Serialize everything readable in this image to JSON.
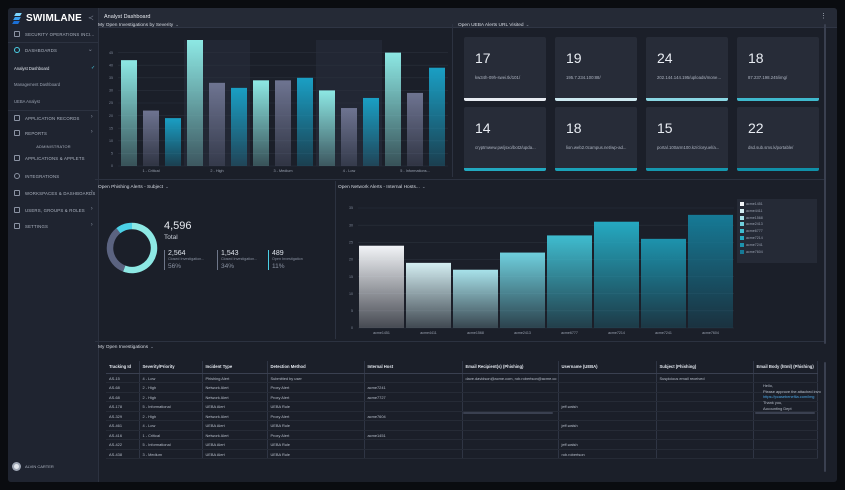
{
  "app": {
    "brand": "SWIMLANE",
    "window_title": "Analyst Dashboard",
    "collapse_icon": "collapse-sidebar-icon",
    "menu_icon": "kebab-menu-icon"
  },
  "sidebar": {
    "items": [
      {
        "label": "SECURITY OPERATIONS INCI...",
        "icon": "grid-icon"
      },
      {
        "label": "DASHBOARDS",
        "icon": "dashboard-icon"
      }
    ],
    "dashboards": [
      {
        "label": "Analyst Dashboard",
        "active": true
      },
      {
        "label": "Management Dashboard"
      },
      {
        "label": "UEBA Analyst"
      }
    ],
    "items2": [
      {
        "label": "APPLICATION RECORDS"
      },
      {
        "label": "REPORTS"
      }
    ],
    "admin_label": "ADMINISTRATOR",
    "admin": [
      {
        "label": "APPLICATIONS & APPLETS"
      },
      {
        "label": "INTEGRATIONS"
      },
      {
        "label": "WORKSPACES & DASHBOARDS"
      },
      {
        "label": "USERS, GROUPS & ROLES"
      },
      {
        "label": "SETTINGS"
      }
    ],
    "user": "ALVIN CARTER"
  },
  "severity_chart": {
    "title": "My Open Investigations by Severity"
  },
  "ueba": {
    "title": "Open UEBA Alerts URL Visited",
    "tiles": [
      {
        "num": "17",
        "label": "kw34h-09h-swei.tk/101/",
        "progress": 1.0,
        "color": "#e8ecf2"
      },
      {
        "num": "19",
        "label": "195.7.234.100:88/",
        "progress": 1.0,
        "color": "#cde9f0"
      },
      {
        "num": "24",
        "label": "202.144.144.195/uploads/mone...",
        "progress": 1.0,
        "color": "#8ad7e3"
      },
      {
        "num": "18",
        "label": "87.237.198.245/img/",
        "progress": 1.0,
        "color": "#3fb9cd"
      },
      {
        "num": "14",
        "label": "cryptmwew.pw/jsxo/bot2/upda...",
        "progress": 1.0,
        "color": "#22a9c0"
      },
      {
        "num": "18",
        "label": "lion.web2.0campus.net/wp-ad...",
        "progress": 1.0,
        "color": "#1aa2b8"
      },
      {
        "num": "15",
        "label": "portal.100arm100.kz/cloryuel/a...",
        "progress": 1.0,
        "color": "#1597ae"
      },
      {
        "num": "22",
        "label": "dsd.sub.sms.k/portable/",
        "progress": 1.0,
        "color": "#1090a8"
      }
    ]
  },
  "phishing": {
    "title": "Open Phishing Alerts - Subject",
    "total": "4,596",
    "total_label": "Total",
    "stats": [
      {
        "value": "2,564",
        "label": "Closed Investigation...",
        "pct": "56%",
        "color": "#8a92a2"
      },
      {
        "value": "1,543",
        "label": "Closed Investigation...",
        "pct": "34%",
        "color": "#6e7689"
      },
      {
        "value": "489",
        "label": "Open Investigation",
        "pct": "11%",
        "color": "#4bd0e6"
      }
    ]
  },
  "network_chart": {
    "title": "Open Network Alerts - Internal Hosts..."
  },
  "table": {
    "title": "My Open Investigations",
    "columns": [
      "Tracking Id",
      "Severity/Priority",
      "Incident Type",
      "Detection Method",
      "Internal Host",
      "Email Recipient(s) (Phishing)",
      "Username (UEBA)",
      "Subject (Phishing)",
      "Email Body (html) (Phishing)"
    ],
    "rows": [
      [
        "AS-15",
        "4 - Low",
        "Phishing Alert",
        "Submitted by user",
        "",
        "dave.davidson@acme.com, rob.robertson@acme.co",
        "",
        "Suspicious email received",
        ""
      ],
      [
        "AS-68",
        "2 - High",
        "Network Alert",
        "Proxy Alert",
        "acme7241",
        "",
        "",
        "",
        ""
      ],
      [
        "AS-68",
        "2 - High",
        "Network Alert",
        "Proxy Alert",
        "acme7727",
        "",
        "",
        "",
        ""
      ],
      [
        "AS-178",
        "5 - Informational",
        "UEBA Alert",
        "UEBA Rule",
        "",
        "",
        "jeff.walsh",
        "",
        ""
      ],
      [
        "AS-329",
        "2 - High",
        "Network Alert",
        "Proxy Alert",
        "acme7604",
        "",
        "",
        "",
        ""
      ],
      [
        "AS-461",
        "4 - Low",
        "UEBA Alert",
        "UEBA Rule",
        "",
        "",
        "jeff.walsh",
        "",
        ""
      ],
      [
        "AS-416",
        "1 - Critical",
        "Network Alert",
        "Proxy Alert",
        "acme1451",
        "",
        "",
        "",
        ""
      ],
      [
        "AS-422",
        "5 - Informational",
        "UEBA Alert",
        "UEBA Rule",
        "",
        "",
        "jeff.walsh",
        "",
        ""
      ],
      [
        "AS-438",
        "3 - Medium",
        "UEBA Alert",
        "UEBA Rule",
        "",
        "",
        "rob.robertson",
        "",
        ""
      ]
    ],
    "email_body": {
      "line1": "Hello,",
      "line2": "Please approve the attached invo",
      "link": "https://pcasebeneflia.com/img",
      "line4": "Thank you,",
      "line5": "Accounting Dept"
    }
  },
  "chart_data": [
    {
      "type": "bar",
      "title": "My Open Investigations by Severity",
      "categories": [
        "1 - Critical",
        "2 - High",
        "3 - Medium",
        "4 - Low",
        "5 - Informations..."
      ],
      "ylim": [
        0,
        50
      ],
      "yticks": [
        0,
        5,
        10,
        15,
        20,
        25,
        30,
        35,
        40,
        45
      ],
      "series": [
        {
          "values": [
            42,
            50,
            34,
            30,
            45
          ],
          "color": "#8de8e4"
        },
        {
          "values": [
            22,
            33,
            34,
            23,
            29
          ],
          "color": "#6e7491"
        },
        {
          "values": [
            19,
            31,
            35,
            27,
            39
          ],
          "color": "#1a9fc4"
        }
      ],
      "grid": true
    },
    {
      "type": "pie",
      "title": "Open Phishing Alerts - Subject",
      "labels": [
        "Closed Investigation...",
        "Closed Investigation...",
        "Open Investigation"
      ],
      "values": [
        2564,
        1543,
        489
      ],
      "colors": [
        "#8de8e4",
        "#5b6380",
        "#4bd0e6"
      ]
    },
    {
      "type": "bar",
      "title": "Open Network Alerts - Internal Hosts...",
      "categories": [
        "acme1451",
        "acme4411",
        "acme1568",
        "acme2413",
        "acme6777",
        "acme7214",
        "acme7241",
        "acme7604"
      ],
      "values": [
        24,
        19,
        17,
        22,
        27,
        31,
        26,
        33
      ],
      "ylim": [
        0,
        35
      ],
      "yticks": [
        0,
        5,
        10,
        15,
        20,
        25,
        30,
        35
      ],
      "legend": [
        "acme1451",
        "acme4411",
        "acme1568",
        "acme2413",
        "acme6777",
        "acme7214",
        "acme7241",
        "acme7604"
      ],
      "legend_colors": [
        "#f2f4f7",
        "#d4eef2",
        "#a8e2ea",
        "#6fcfdd",
        "#3fbccf",
        "#25a9c1",
        "#1d93ad",
        "#167a96"
      ],
      "legend_position": "right",
      "grid": true
    }
  ]
}
